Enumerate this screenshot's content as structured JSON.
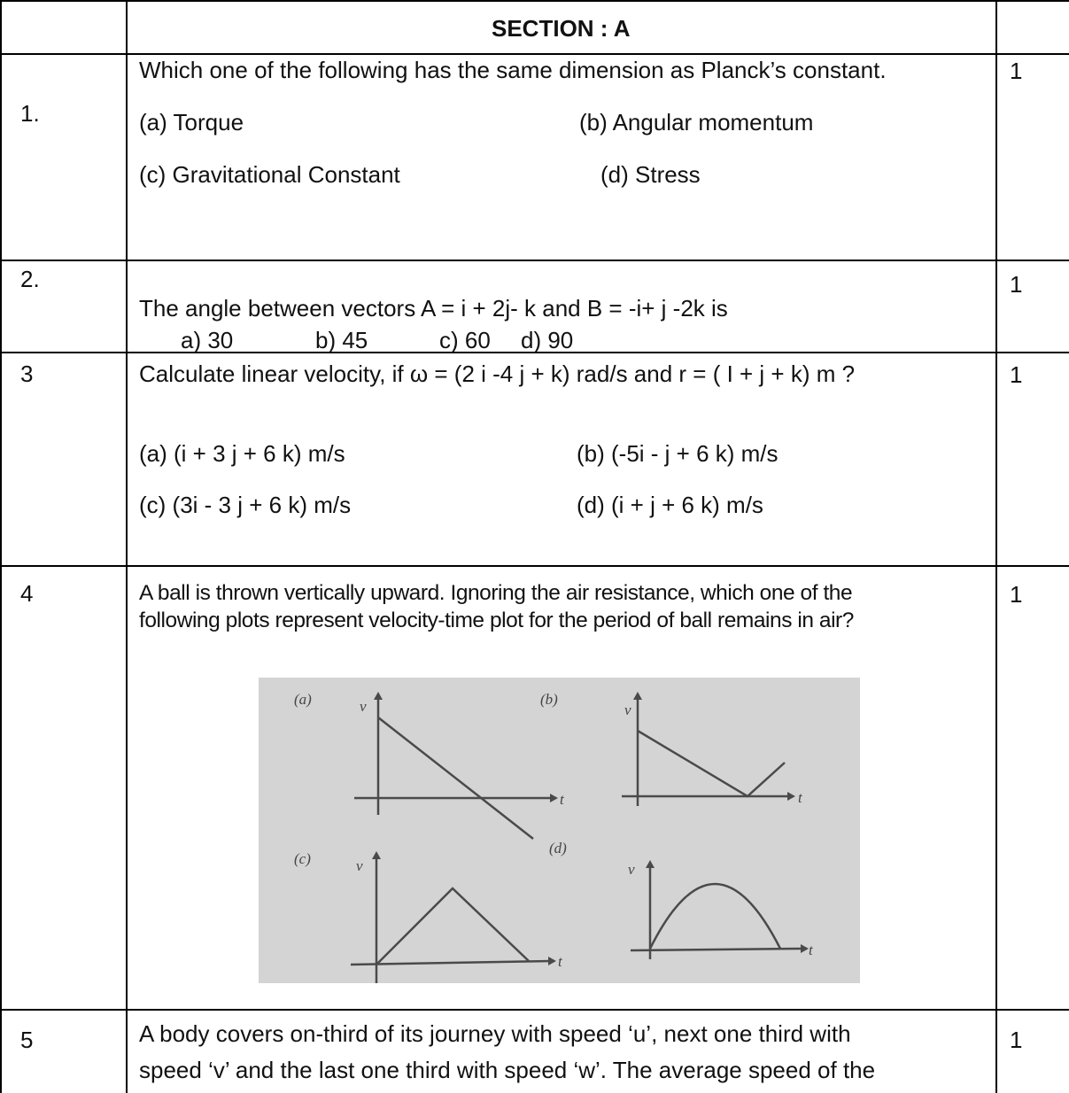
{
  "section_title": "SECTION : A",
  "questions": [
    {
      "number": "1.",
      "marks": "1",
      "text": "Which one of the following has the same dimension as Planck’s constant.",
      "options": [
        "(a) Torque",
        "(b) Angular momentum",
        "(c) Gravitational Constant",
        "(d) Stress"
      ]
    },
    {
      "number": "2.",
      "marks": "1",
      "text": "The angle between vectors A = i + 2j- k and B = -i+ j -2k is",
      "options": [
        "a)   30",
        "b) 45",
        "c) 60",
        "d) 90"
      ]
    },
    {
      "number": "3",
      "marks": "1",
      "text": "Calculate linear velocity, if ω = (2 i -4 j + k) rad/s and r = ( I + j + k) m ?",
      "options": [
        "(a) (i + 3 j + 6 k) m/s",
        "(b) (-5i -  j + 6 k) m/s",
        "(c) (3i - 3 j + 6 k) m/s",
        "(d) (i +  j + 6 k) m/s"
      ]
    },
    {
      "number": "4",
      "marks": "1",
      "text_lines": [
        "A ball is thrown  vertically upward. Ignoring the air resistance, which one of the",
        "following plots represent velocity-time plot for the period of ball remains in air?"
      ],
      "figure_labels": {
        "panels": [
          "(a)",
          "(b)",
          "(c)",
          "(d)"
        ],
        "y_axis": "v",
        "x_axis": "t"
      }
    },
    {
      "number": "5",
      "marks": "1",
      "text_lines": [
        "A body covers on-third of its journey with speed ‘u’, next one third with",
        "speed ‘v’ and the last one third with speed ‘w’. The average speed of the"
      ]
    }
  ]
}
